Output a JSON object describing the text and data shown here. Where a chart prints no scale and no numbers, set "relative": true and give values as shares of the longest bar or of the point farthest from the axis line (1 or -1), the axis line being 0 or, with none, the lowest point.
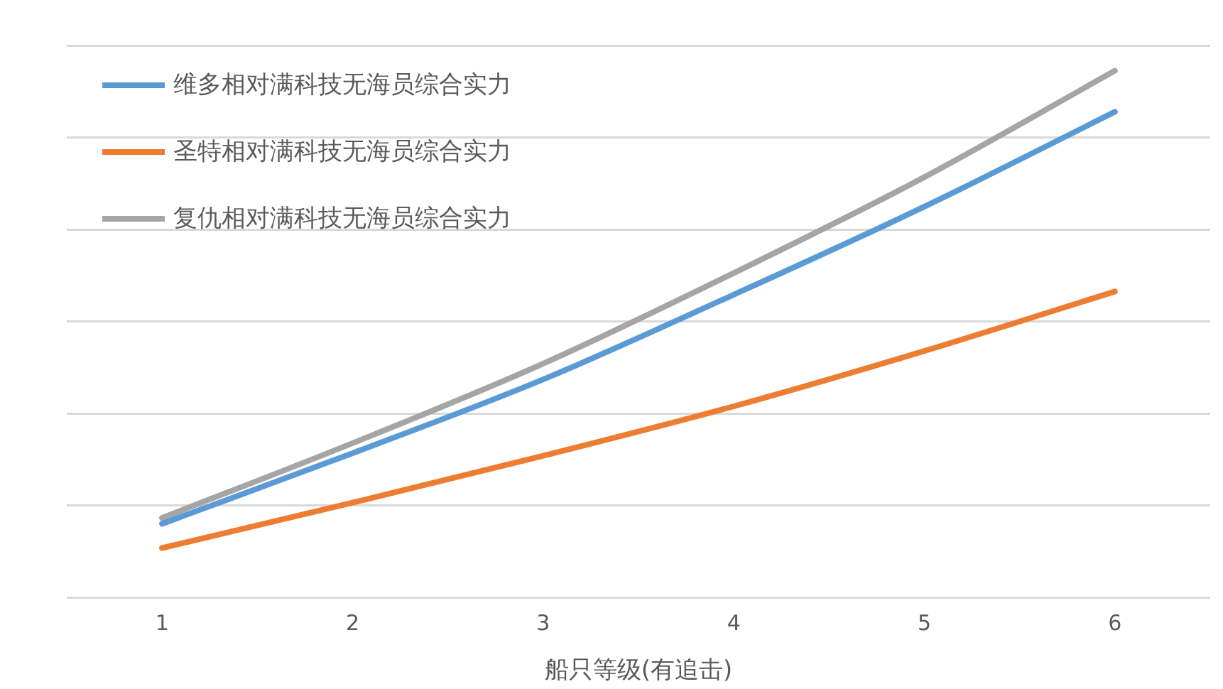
{
  "chart_data": {
    "type": "line",
    "xlabel": "船只等级(有追击)",
    "categories": [
      "1",
      "2",
      "3",
      "4",
      "5",
      "6"
    ],
    "relative": true,
    "grid": "y",
    "legend": "top left",
    "marker": "none",
    "line_style": "solid",
    "series": [
      {
        "name": "维多相对满科技无海员综合实力",
        "color": "#5b9bd5",
        "values": [
          0.14,
          0.274,
          0.414,
          0.575,
          0.742,
          0.922
        ]
      },
      {
        "name": "圣特相对满科技无海员综合实力",
        "color": "#ed7d31",
        "values": [
          0.094,
          0.18,
          0.269,
          0.363,
          0.468,
          0.581
        ]
      },
      {
        "name": "复仇相对满科技无海员综合实力",
        "color": "#a5a5a5",
        "values": [
          0.151,
          0.293,
          0.444,
          0.616,
          0.798,
          1
        ]
      }
    ]
  }
}
